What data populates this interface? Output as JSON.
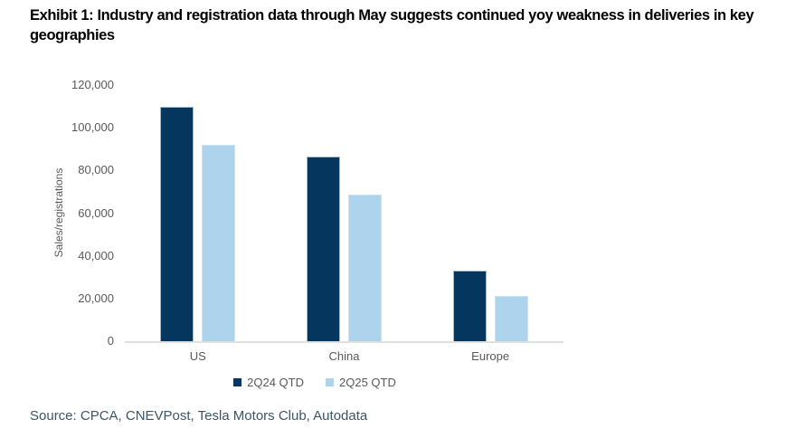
{
  "title": "Exhibit 1: Industry and registration data through May suggests continued yoy weakness in deliveries in key geographies",
  "source": "Source: CPCA, CNEVPost, Tesla Motors Club, Autodata",
  "colors": {
    "series_2q24": "#05365e",
    "series_2q25": "#aed3ec",
    "axis_line": "#e0e0e0",
    "tick_text": "#595959",
    "source_text": "#3b5566"
  },
  "chart_data": {
    "type": "bar",
    "title": "",
    "xlabel": "",
    "ylabel": "Sales/registrations",
    "categories": [
      "US",
      "China",
      "Europe"
    ],
    "series": [
      {
        "name": "2Q24 QTD",
        "color": "#05365e",
        "values": [
          110000,
          86500,
          33000
        ]
      },
      {
        "name": "2Q25 QTD",
        "color": "#aed3ec",
        "values": [
          92000,
          68500,
          21000
        ]
      }
    ],
    "ylim": [
      0,
      120000
    ],
    "yticks": [
      {
        "value": 0,
        "label": "0"
      },
      {
        "value": 20000,
        "label": "20,000"
      },
      {
        "value": 40000,
        "label": "40,000"
      },
      {
        "value": 60000,
        "label": "60,000"
      },
      {
        "value": 80000,
        "label": "80,000"
      },
      {
        "value": 100000,
        "label": "100,000"
      },
      {
        "value": 120000,
        "label": "120,000"
      }
    ],
    "grid": false,
    "legend_position": "bottom"
  }
}
